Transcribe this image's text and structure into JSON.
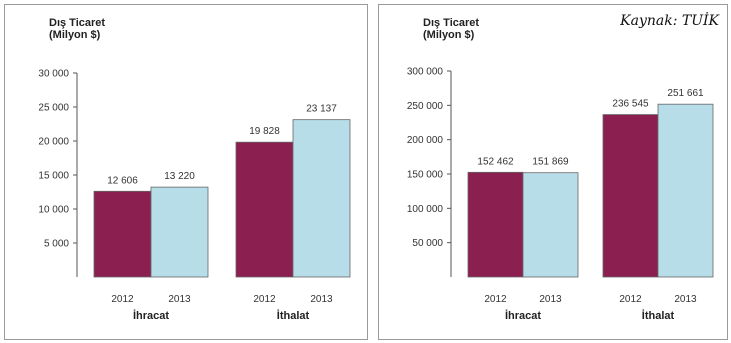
{
  "source_note": "Kaynak: TUİK",
  "chart_data": [
    {
      "type": "bar",
      "ytitle_line1": "Dış Ticaret",
      "ytitle_line2": "(Milyon $)",
      "groups": [
        "İhracat",
        "İthalat"
      ],
      "categories": [
        "2012",
        "2013"
      ],
      "values": [
        [
          12606,
          13220
        ],
        [
          19828,
          23137
        ]
      ],
      "data_labels": [
        [
          "12 606",
          "13 220"
        ],
        [
          "19 828",
          "23 137"
        ]
      ],
      "ylim": [
        0,
        30000
      ],
      "ticks": [
        5000,
        10000,
        15000,
        20000,
        25000,
        30000
      ],
      "tick_labels": [
        "5 000",
        "10 000",
        "15 000",
        "20 000",
        "25 000",
        "30 000"
      ],
      "colors": [
        "#8b1f4f",
        "#b7dde8"
      ],
      "grid": false,
      "legend": "none"
    },
    {
      "type": "bar",
      "ytitle_line1": "Dış Ticaret",
      "ytitle_line2": "(Milyon $)",
      "groups": [
        "İhracat",
        "İthalat"
      ],
      "categories": [
        "2012",
        "2013"
      ],
      "values": [
        [
          152462,
          151869
        ],
        [
          236545,
          251661
        ]
      ],
      "data_labels": [
        [
          "152 462",
          "151 869"
        ],
        [
          "236 545",
          "251 661"
        ]
      ],
      "ylim": [
        0,
        300000
      ],
      "ticks": [
        50000,
        100000,
        150000,
        200000,
        250000,
        300000
      ],
      "tick_labels": [
        "50 000",
        "100 000",
        "150 000",
        "200 000",
        "250 000",
        "300 000"
      ],
      "colors": [
        "#8b1f4f",
        "#b7dde8"
      ],
      "grid": false,
      "legend": "none"
    }
  ]
}
